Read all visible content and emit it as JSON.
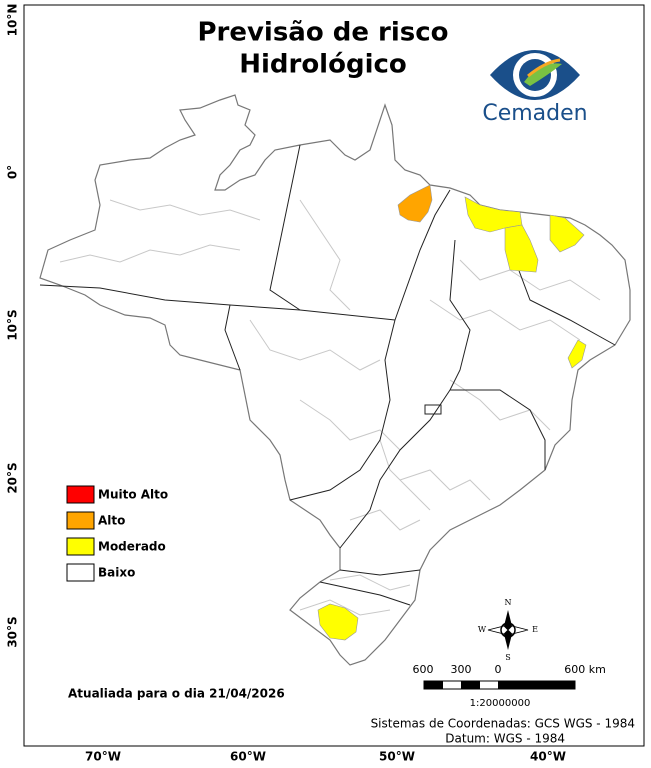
{
  "title": [
    "Previsão de risco",
    "Hidrológico"
  ],
  "logo": "Cemaden",
  "legend": [
    {
      "label": "Muito Alto",
      "color": "#ff0000"
    },
    {
      "label": "Alto",
      "color": "#ffa500"
    },
    {
      "label": "Moderado",
      "color": "#ffff00"
    },
    {
      "label": "Baixo",
      "color": "#ffffff"
    }
  ],
  "latitude_labels": [
    "10°N",
    "0°",
    "10°S",
    "20°S",
    "30°S"
  ],
  "longitude_labels": [
    "70°W",
    "60°W",
    "50°W",
    "40°W"
  ],
  "compass": {
    "n": "N",
    "s": "S",
    "e": "E",
    "w": "W"
  },
  "scale_bar": {
    "labels": [
      "600",
      "300",
      "0",
      "600 km"
    ],
    "ratio": "1:20000000"
  },
  "update_note": "Atualiada para o dia 21/04/2026",
  "footer": [
    "Sistemas de Coordenadas: GCS WGS - 1984",
    "Datum: WGS - 1984"
  ]
}
